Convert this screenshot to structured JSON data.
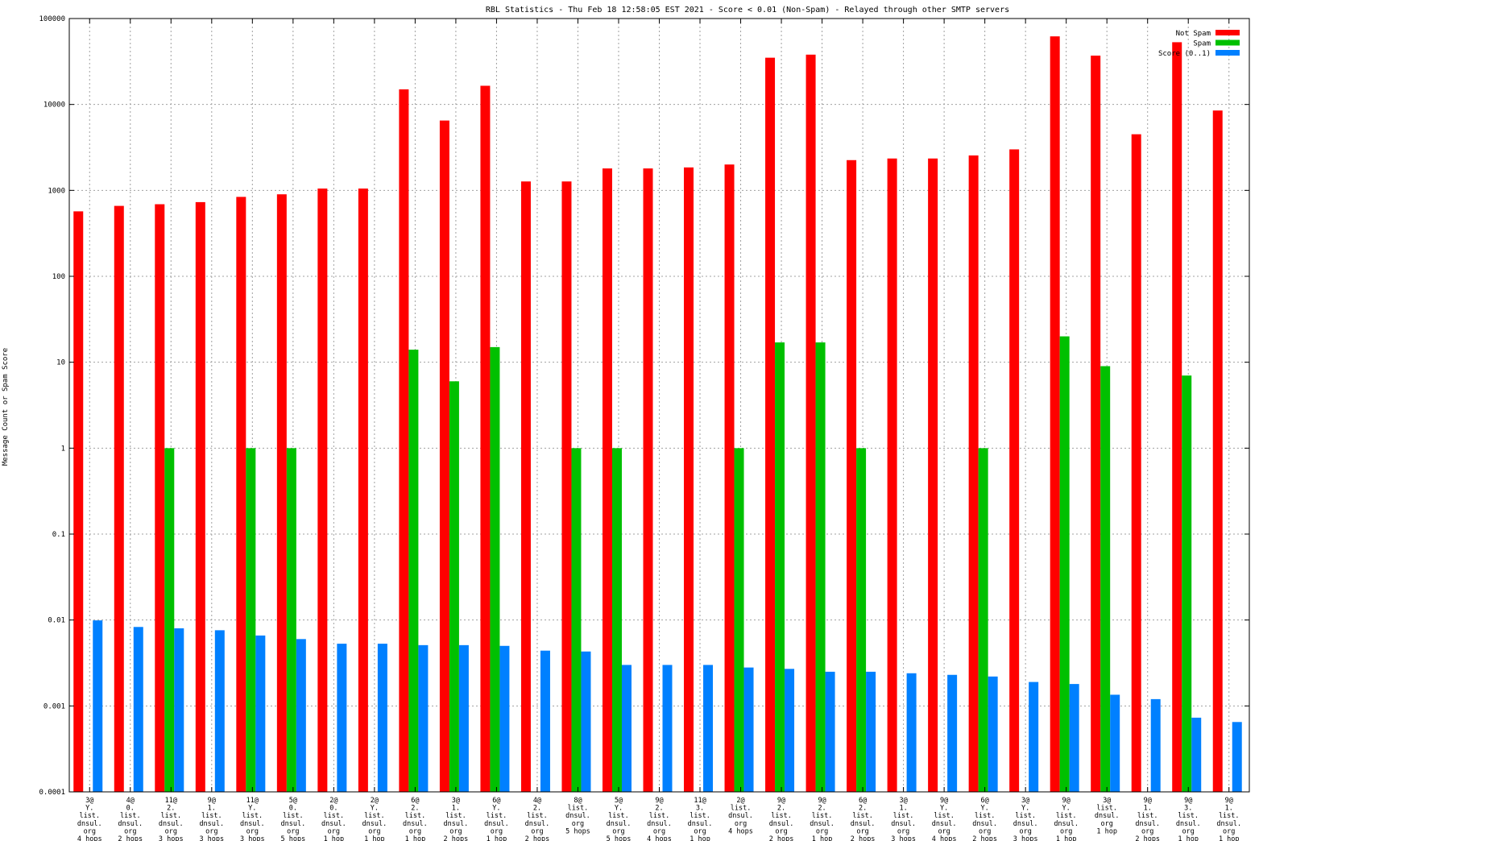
{
  "chart_data": {
    "type": "bar",
    "title": "RBL Statistics - Thu Feb 18 12:58:05 EST 2021 - Score < 0.01 (Non-Spam) - Relayed through other SMTP servers",
    "xlabel": "",
    "ylabel": "Message Count or Spam Score",
    "yscale": "log",
    "ylim": [
      0.0001,
      100000
    ],
    "yticks": [
      "0.0001",
      "0.001",
      "0.01",
      "0.1",
      "1",
      "10",
      "100",
      "1000",
      "10000",
      "100000"
    ],
    "grid": true,
    "legend_position": "top-right",
    "categories": [
      [
        "3@",
        "Y.",
        "list.",
        "dnsul.",
        "org",
        "4 hops"
      ],
      [
        "4@",
        "0.",
        "list.",
        "dnsul.",
        "org",
        "2 hops"
      ],
      [
        "11@",
        "2.",
        "list.",
        "dnsul.",
        "org",
        "3 hops"
      ],
      [
        "9@",
        "1.",
        "list.",
        "dnsul.",
        "org",
        "3 hops"
      ],
      [
        "11@",
        "Y.",
        "list.",
        "dnsul.",
        "org",
        "3 hops"
      ],
      [
        "5@",
        "0.",
        "list.",
        "dnsul.",
        "org",
        "5 hops"
      ],
      [
        "2@",
        "0.",
        "list.",
        "dnsul.",
        "org",
        "1 hop"
      ],
      [
        "2@",
        "Y.",
        "list.",
        "dnsul.",
        "org",
        "1 hop"
      ],
      [
        "6@",
        "2.",
        "list.",
        "dnsul.",
        "org",
        "1 hop"
      ],
      [
        "3@",
        "1.",
        "list.",
        "dnsul.",
        "org",
        "2 hops"
      ],
      [
        "6@",
        "Y.",
        "list.",
        "dnsul.",
        "org",
        "1 hop"
      ],
      [
        "4@",
        "2.",
        "list.",
        "dnsul.",
        "org",
        "2 hops"
      ],
      [
        "8@",
        "list.",
        "dnsul.",
        "org",
        "5 hops"
      ],
      [
        "5@",
        "Y.",
        "list.",
        "dnsul.",
        "org",
        "5 hops"
      ],
      [
        "9@",
        "2.",
        "list.",
        "dnsul.",
        "org",
        "4 hops"
      ],
      [
        "11@",
        "3.",
        "list.",
        "dnsul.",
        "org",
        "1 hop"
      ],
      [
        "2@",
        "list.",
        "dnsul.",
        "org",
        "4 hops"
      ],
      [
        "9@",
        "2.",
        "list.",
        "dnsul.",
        "org",
        "2 hops"
      ],
      [
        "9@",
        "2.",
        "list.",
        "dnsul.",
        "org",
        "1 hop"
      ],
      [
        "6@",
        "2.",
        "list.",
        "dnsul.",
        "org",
        "2 hops"
      ],
      [
        "3@",
        "1.",
        "list.",
        "dnsul.",
        "org",
        "3 hops"
      ],
      [
        "9@",
        "Y.",
        "list.",
        "dnsul.",
        "org",
        "4 hops"
      ],
      [
        "6@",
        "Y.",
        "list.",
        "dnsul.",
        "org",
        "2 hops"
      ],
      [
        "3@",
        "Y.",
        "list.",
        "dnsul.",
        "org",
        "3 hops"
      ],
      [
        "9@",
        "Y.",
        "list.",
        "dnsul.",
        "org",
        "1 hop"
      ],
      [
        "3@",
        "list.",
        "dnsul.",
        "org",
        "1 hop"
      ],
      [
        "9@",
        "1.",
        "list.",
        "dnsul.",
        "org",
        "2 hops"
      ],
      [
        "9@",
        "3.",
        "list.",
        "dnsul.",
        "org",
        "1 hop"
      ],
      [
        "9@",
        "1.",
        "list.",
        "dnsul.",
        "org",
        "1 hop"
      ]
    ],
    "series": [
      {
        "name": "Not Spam",
        "color": "#ff0000",
        "values": [
          570,
          660,
          690,
          730,
          840,
          900,
          1050,
          1050,
          15000,
          6500,
          16500,
          1270,
          1270,
          1800,
          1800,
          1850,
          2000,
          35000,
          38000,
          2250,
          2350,
          2350,
          2550,
          3000,
          62000,
          37000,
          4500,
          53000,
          8500
        ]
      },
      {
        "name": "Spam",
        "color": "#00c000",
        "values": [
          null,
          null,
          1,
          null,
          1,
          1,
          null,
          null,
          14,
          6,
          15,
          null,
          1,
          1,
          null,
          null,
          1,
          17,
          17,
          1,
          null,
          null,
          1,
          null,
          20,
          9,
          null,
          7,
          null
        ]
      },
      {
        "name": "Score (0..1)",
        "color": "#0080ff",
        "values": [
          0.0099,
          0.0083,
          0.008,
          0.0076,
          0.0066,
          0.006,
          0.0053,
          0.0053,
          0.0051,
          0.0051,
          0.005,
          0.0044,
          0.0043,
          0.003,
          0.003,
          0.003,
          0.0028,
          0.0027,
          0.0025,
          0.0025,
          0.0024,
          0.0023,
          0.0022,
          0.0019,
          0.0018,
          0.00135,
          0.0012,
          0.00073,
          0.00065
        ]
      }
    ]
  }
}
